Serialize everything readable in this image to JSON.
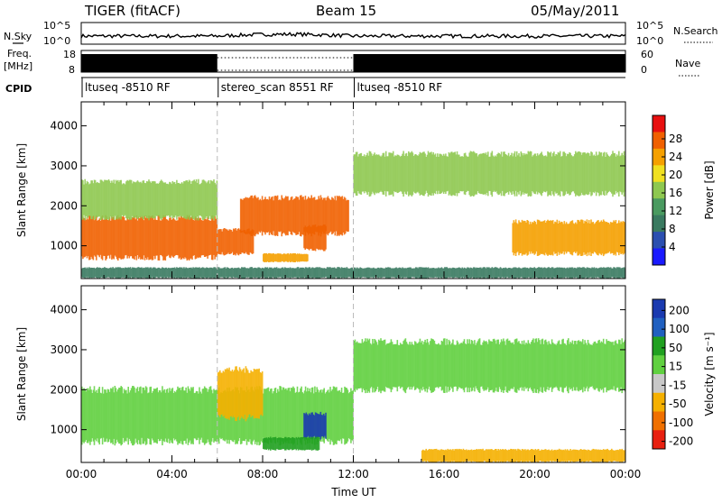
{
  "header": {
    "radar_title": "TIGER (fitACF)",
    "beam": "Beam 15",
    "date": "05/May/2011"
  },
  "top_panel": {
    "nsky_label": "N.Sky",
    "nsearch_label": "N.Search",
    "nsky_ticks": [
      "10^5",
      "10^0"
    ],
    "nsearch_ticks": [
      "10^5",
      "10^0"
    ],
    "freq_label_1": "Freq.",
    "freq_label_2": "[MHz]",
    "freq_ticks": [
      "18",
      "8"
    ],
    "nave_ticks": [
      "60",
      "0"
    ],
    "nave_label": "Nave",
    "cpid_label": "CPID",
    "cpid_segments": [
      {
        "label": "ltuseq -8510 RF",
        "start_hr": 0,
        "end_hr": 6
      },
      {
        "label": "stereo_scan 8551 RF",
        "start_hr": 6,
        "end_hr": 12
      },
      {
        "label": "ltuseq -8510 RF",
        "start_hr": 12,
        "end_hr": 24
      }
    ]
  },
  "chart_data": [
    {
      "type": "heatmap",
      "name": "power",
      "ylabel": "Slant Range [km]",
      "ylim": [
        180,
        4600
      ],
      "yticks": [
        "1000",
        "2000",
        "3000",
        "4000"
      ],
      "xlim": [
        0,
        24
      ],
      "colorbar_label": "Power [dB]",
      "colorbar_ticks": [
        "4",
        "8",
        "12",
        "16",
        "20",
        "24",
        "28"
      ],
      "colorbar_colors": [
        "#1a1aff",
        "#2b4fb0",
        "#3a7a60",
        "#4a9a60",
        "#8ec850",
        "#f0e020",
        "#f5a000",
        "#f06000",
        "#e81010"
      ],
      "regions": [
        {
          "t0": 0.0,
          "t1": 6.0,
          "r0": 700,
          "r1": 1700,
          "level": 26
        },
        {
          "t0": 0.0,
          "t1": 6.0,
          "r0": 1700,
          "r1": 2600,
          "level": 14
        },
        {
          "t0": 6.0,
          "t1": 7.6,
          "r0": 800,
          "r1": 1400,
          "level": 28
        },
        {
          "t0": 7.0,
          "t1": 11.8,
          "r0": 1300,
          "r1": 2200,
          "level": 26
        },
        {
          "t0": 9.8,
          "t1": 10.8,
          "r0": 900,
          "r1": 1500,
          "level": 28
        },
        {
          "t0": 8.0,
          "t1": 10.0,
          "r0": 600,
          "r1": 800,
          "level": 24
        },
        {
          "t0": 12.0,
          "t1": 24.0,
          "r0": 2300,
          "r1": 3300,
          "level": 14
        },
        {
          "t0": 19.0,
          "t1": 24.0,
          "r0": 800,
          "r1": 1600,
          "level": 24
        },
        {
          "t0": 0.0,
          "t1": 24.0,
          "r0": 200,
          "r1": 450,
          "level": 8
        }
      ]
    },
    {
      "type": "heatmap",
      "name": "velocity",
      "ylabel": "Slant Range [km]",
      "ylim": [
        180,
        4600
      ],
      "yticks": [
        "1000",
        "2000",
        "3000",
        "4000"
      ],
      "xlim": [
        0,
        24
      ],
      "xticks": [
        "00:00",
        "04:00",
        "08:00",
        "12:00",
        "16:00",
        "20:00",
        "00:00"
      ],
      "xlabel": "Time UT",
      "colorbar_label": "Velocity [m s⁻¹]",
      "colorbar_ticks": [
        "200",
        "100",
        "50",
        "15",
        "-15",
        "-50",
        "-100",
        "-200"
      ],
      "colorbar_colors": [
        "#1a3ab0",
        "#2060c0",
        "#20a020",
        "#60d040",
        "#c8c8c8",
        "#f5b000",
        "#f07000",
        "#e82010"
      ],
      "regions": [
        {
          "t0": 0.0,
          "t1": 12.0,
          "r0": 700,
          "r1": 2000,
          "level": 0
        },
        {
          "t0": 12.0,
          "t1": 24.0,
          "r0": 2000,
          "r1": 3200,
          "level": 0
        },
        {
          "t0": 6.0,
          "t1": 8.0,
          "r0": 1300,
          "r1": 2500,
          "level": -40
        },
        {
          "t0": 9.8,
          "t1": 10.8,
          "r0": 800,
          "r1": 1400,
          "level": 150
        },
        {
          "t0": 8.0,
          "t1": 10.5,
          "r0": 500,
          "r1": 800,
          "level": 40
        },
        {
          "t0": 15.0,
          "t1": 24.0,
          "r0": 200,
          "r1": 500,
          "level": -50
        }
      ]
    }
  ]
}
